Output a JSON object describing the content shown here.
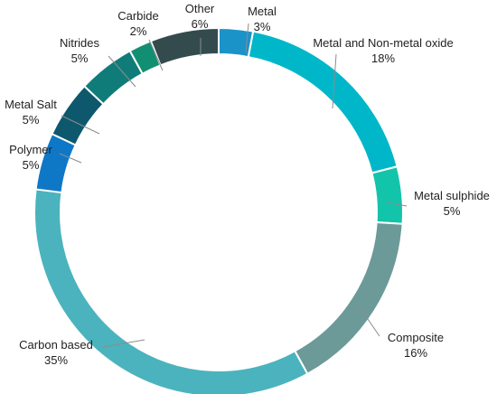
{
  "chart_data": {
    "type": "pie",
    "style": "donut",
    "legend": "none",
    "order": "clockwise from top",
    "slices": [
      {
        "label": "Metal",
        "value": 3,
        "value_label": "3%",
        "color": "#1a93c9"
      },
      {
        "label": "Metal and Non-metal oxide",
        "value": 18,
        "value_label": "18%",
        "color": "#00b7c9"
      },
      {
        "label": "Metal sulphide",
        "value": 5,
        "value_label": "5%",
        "color": "#12c4aa"
      },
      {
        "label": "Composite",
        "value": 16,
        "value_label": "16%",
        "color": "#6b9a98"
      },
      {
        "label": "Carbon based",
        "value": 35,
        "value_label": "35%",
        "color": "#4bb3be"
      },
      {
        "label": "Polymer",
        "value": 5,
        "value_label": "5%",
        "color": "#0e78c7"
      },
      {
        "label": "Metal Salt",
        "value": 5,
        "value_label": "5%",
        "color": "#0e586d"
      },
      {
        "label": "Nitrides",
        "value": 5,
        "value_label": "5%",
        "color": "#0f7c7a"
      },
      {
        "label": "Carbide",
        "value": 2,
        "value_label": "2%",
        "color": "#128f72"
      },
      {
        "label": "Other",
        "value": 6,
        "value_label": "6%",
        "color": "#344b4e"
      }
    ]
  }
}
